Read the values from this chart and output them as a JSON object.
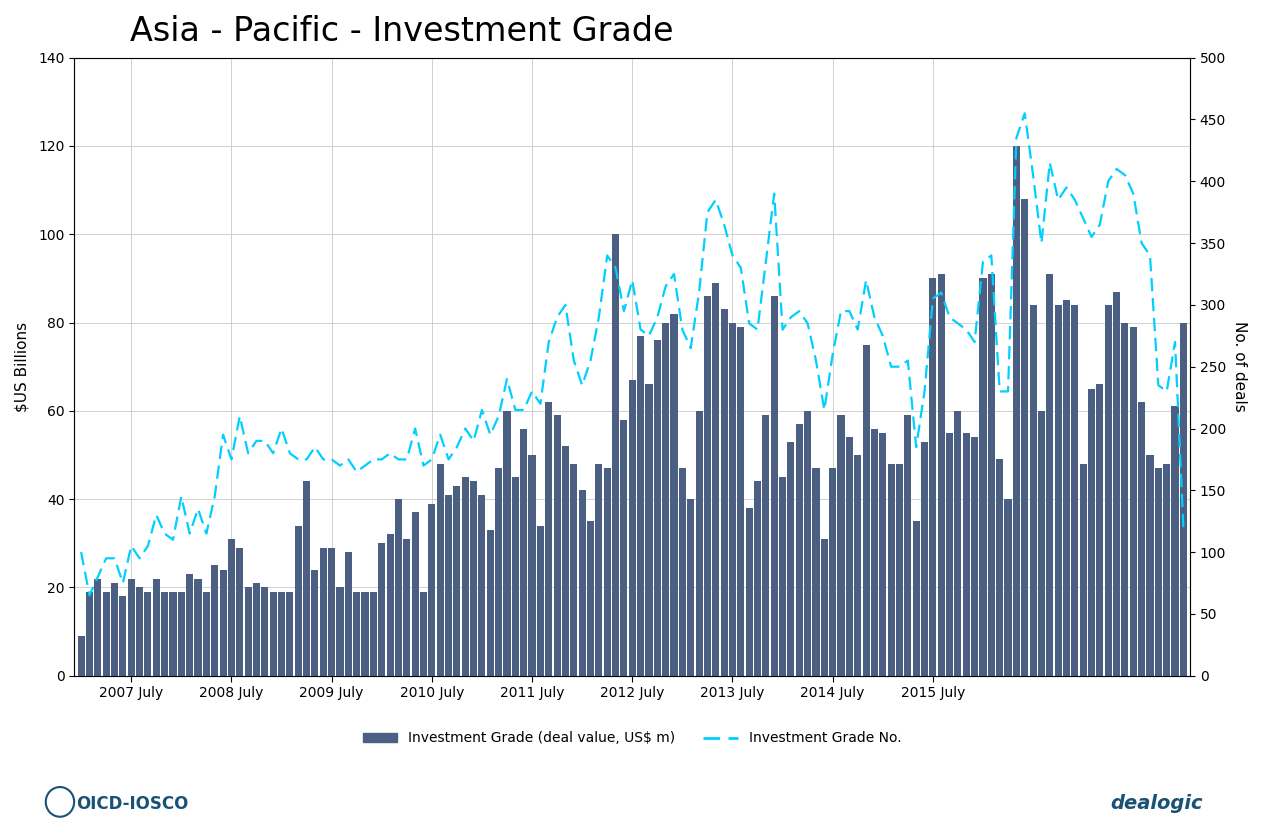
{
  "title": "Asia - Pacific - Investment Grade",
  "ylabel_left": "$US Billions",
  "ylabel_right": "No. of deals",
  "bar_color": "#4a5f82",
  "line_color": "#00cfff",
  "ylim_left": [
    0,
    140
  ],
  "ylim_right": [
    0,
    500
  ],
  "yticks_left": [
    0,
    20,
    40,
    60,
    80,
    100,
    120,
    140
  ],
  "yticks_right": [
    0,
    50,
    100,
    150,
    200,
    250,
    300,
    350,
    400,
    450,
    500
  ],
  "xtick_labels": [
    "2007 July",
    "2008 July",
    "2009 July",
    "2010 July",
    "2011 July",
    "2012 July",
    "2013 July",
    "2014 July",
    "2015 July"
  ],
  "bar_values": [
    9,
    19,
    22,
    19,
    21,
    18,
    22,
    20,
    19,
    22,
    19,
    19,
    19,
    23,
    22,
    19,
    25,
    24,
    31,
    29,
    20,
    21,
    20,
    19,
    19,
    19,
    34,
    44,
    24,
    29,
    29,
    20,
    28,
    19,
    19,
    19,
    30,
    32,
    40,
    31,
    37,
    19,
    39,
    48,
    41,
    43,
    45,
    44,
    41,
    33,
    47,
    60,
    45,
    56,
    50,
    34,
    62,
    59,
    52,
    48,
    42,
    35,
    48,
    47,
    100,
    58,
    67,
    77,
    66,
    76,
    80,
    82,
    47,
    40,
    60,
    86,
    89,
    83,
    80,
    79,
    38,
    44,
    59,
    86,
    45,
    53,
    57,
    60,
    47,
    31,
    47,
    59,
    54,
    50,
    75,
    56,
    55,
    48,
    48,
    59,
    35,
    53,
    90,
    91,
    55,
    60,
    55,
    54,
    90,
    91,
    49,
    40,
    120,
    108,
    84,
    60,
    91,
    84,
    85,
    84,
    48,
    65,
    66,
    84,
    87,
    80,
    79,
    62,
    50,
    47,
    48,
    61,
    80
  ],
  "line_values": [
    100,
    65,
    80,
    95,
    95,
    75,
    105,
    95,
    105,
    130,
    115,
    110,
    145,
    115,
    135,
    115,
    145,
    195,
    175,
    210,
    180,
    190,
    190,
    180,
    200,
    180,
    175,
    175,
    185,
    175,
    175,
    170,
    175,
    165,
    170,
    175,
    175,
    180,
    175,
    175,
    200,
    170,
    175,
    195,
    175,
    185,
    200,
    190,
    215,
    195,
    210,
    240,
    215,
    215,
    230,
    220,
    270,
    290,
    300,
    255,
    235,
    255,
    290,
    340,
    330,
    295,
    320,
    280,
    275,
    290,
    315,
    325,
    280,
    265,
    310,
    375,
    385,
    365,
    340,
    330,
    285,
    280,
    335,
    390,
    280,
    290,
    295,
    285,
    255,
    215,
    260,
    295,
    295,
    280,
    320,
    290,
    275,
    250,
    250,
    255,
    185,
    230,
    305,
    310,
    290,
    285,
    280,
    270,
    335,
    340,
    230,
    230,
    435,
    455,
    405,
    350,
    415,
    385,
    395,
    385,
    370,
    355,
    365,
    400,
    410,
    405,
    390,
    350,
    340,
    235,
    230,
    270,
    120
  ],
  "start_year": 2007,
  "start_month": 1
}
